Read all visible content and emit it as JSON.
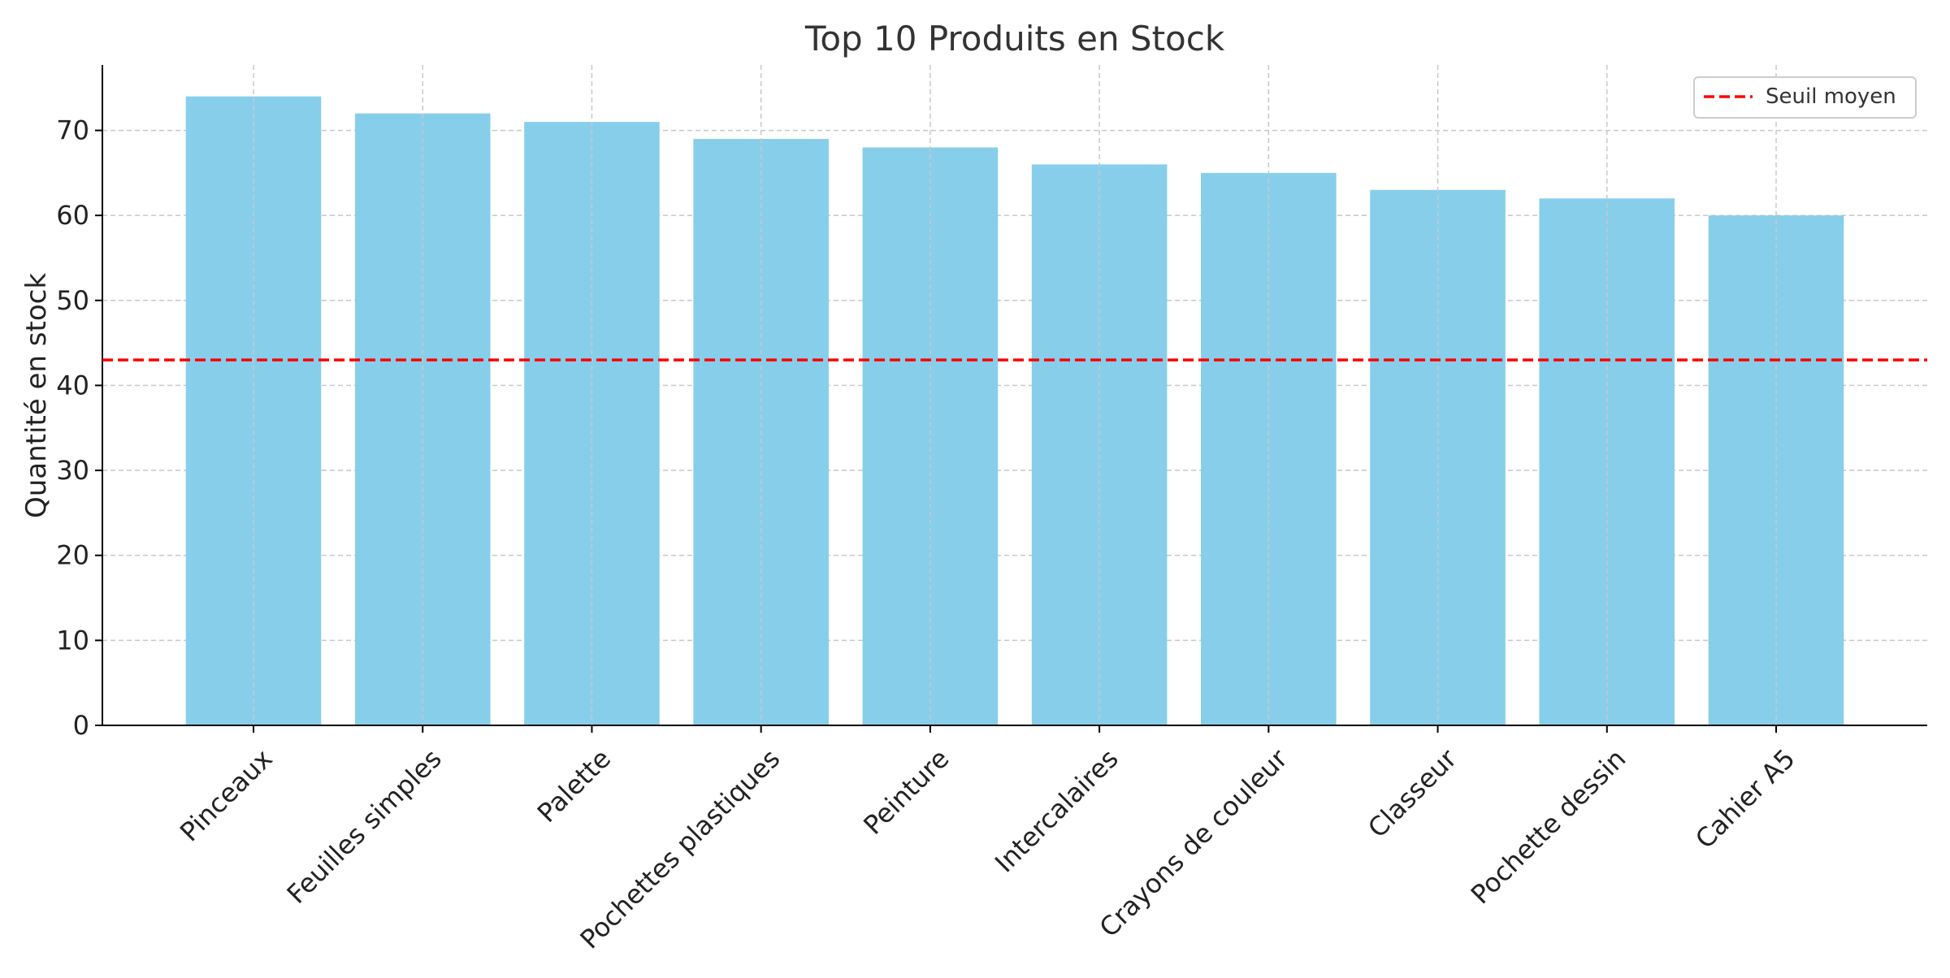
{
  "chart_data": {
    "type": "bar",
    "title": "Top 10 Produits en Stock",
    "xlabel": "",
    "ylabel": "Quantité en stock",
    "categories": [
      "Pinceaux",
      "Feuilles simples",
      "Palette",
      "Pochettes plastiques",
      "Peinture",
      "Intercalaires",
      "Crayons de couleur",
      "Classeur",
      "Pochette dessin",
      "Cahier A5"
    ],
    "values": [
      74,
      72,
      71,
      69,
      68,
      66,
      65,
      63,
      62,
      60
    ],
    "ylim": [
      0,
      77.7
    ],
    "yticks": [
      0,
      10,
      20,
      30,
      40,
      50,
      60,
      70
    ],
    "reference_line": {
      "name": "Seuil moyen",
      "value": 43,
      "style": "dashed",
      "color": "#ff0000"
    },
    "grid": true,
    "legend_position": "top-right",
    "colors": {
      "bar": "#87ceeb",
      "grid": "#c8c8c8",
      "axis": "#000000",
      "text": "#333333"
    }
  }
}
